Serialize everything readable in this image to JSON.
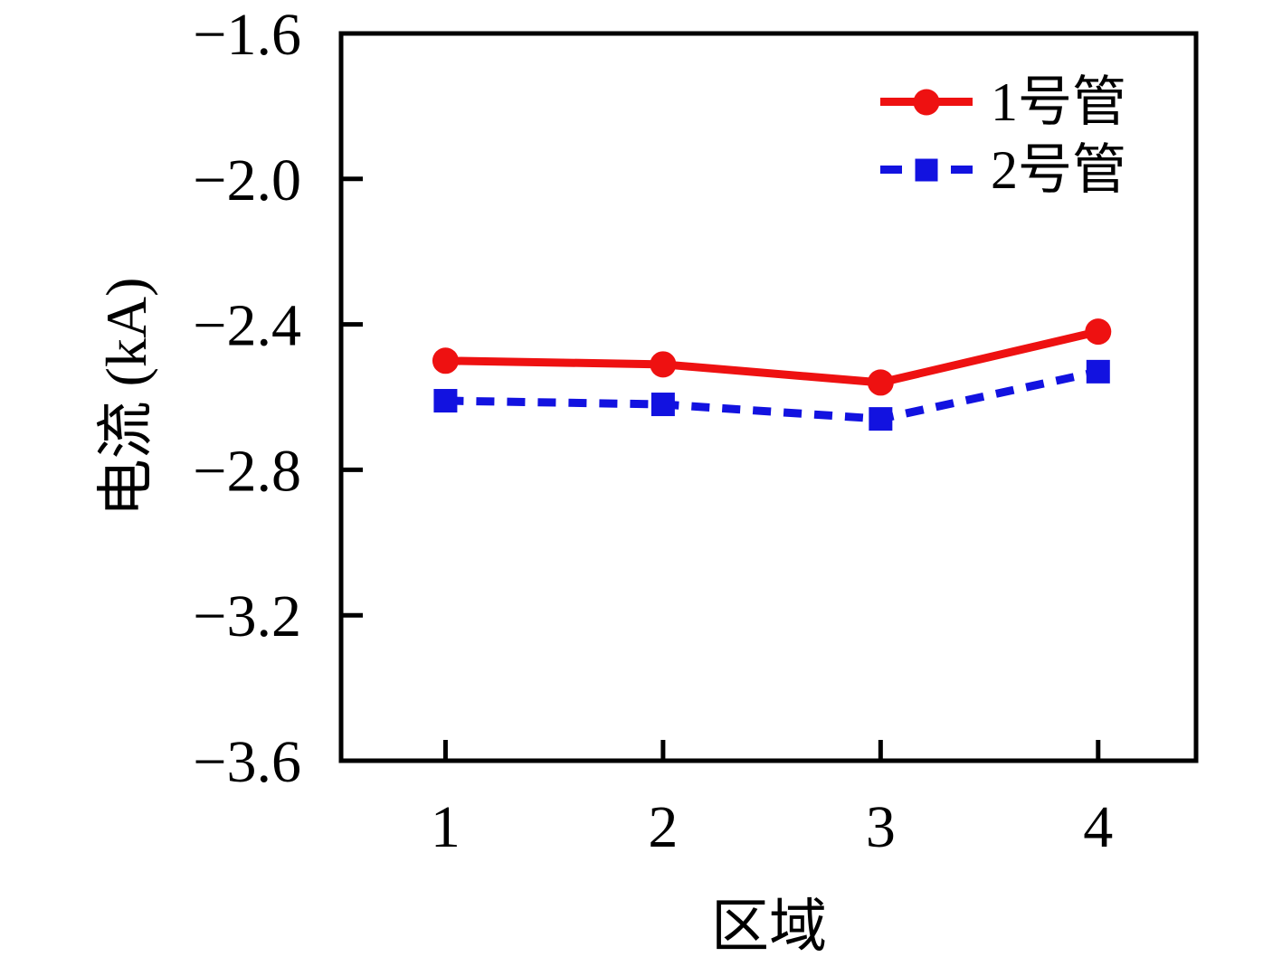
{
  "chart_data": {
    "type": "line",
    "title": "",
    "xlabel": "区域",
    "ylabel": "电流 (kA)",
    "x": [
      1,
      2,
      3,
      4
    ],
    "series": [
      {
        "name": "1号管",
        "color": "#ee1111",
        "line_style": "solid",
        "marker": "circle",
        "values": [
          -2.5,
          -2.51,
          -2.56,
          -2.42
        ]
      },
      {
        "name": "2号管",
        "color": "#1212e0",
        "line_style": "dashed",
        "marker": "square",
        "values": [
          -2.61,
          -2.62,
          -2.66,
          -2.53
        ]
      }
    ],
    "xlim": [
      0.52,
      4.45
    ],
    "ylim": [
      -3.6,
      -1.6
    ],
    "x_ticks": [
      "1",
      "2",
      "3",
      "4"
    ],
    "x_tick_values": [
      1,
      2,
      3,
      4
    ],
    "y_ticks": [
      "−1.6",
      "−2.0",
      "−2.4",
      "−2.8",
      "−3.2",
      "−3.6"
    ],
    "y_tick_values": [
      -1.6,
      -2.0,
      -2.4,
      -2.8,
      -3.2,
      -3.6
    ],
    "grid": false,
    "legend_position": "top-right",
    "axis_color": "#000000",
    "background_color": "#ffffff"
  }
}
